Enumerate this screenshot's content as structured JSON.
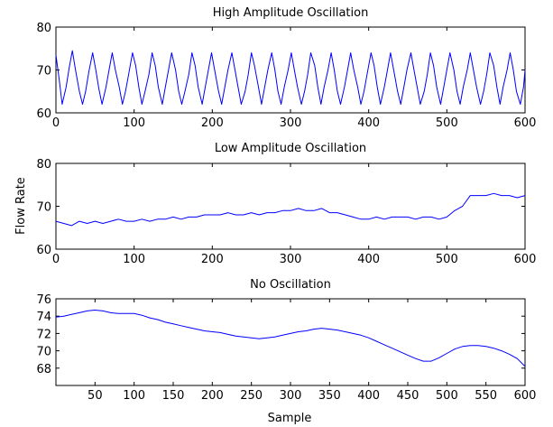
{
  "chart_data": [
    {
      "type": "line",
      "title": "High Amplitude Oscillation",
      "xlabel": "",
      "ylabel": "",
      "xlim": [
        0,
        600
      ],
      "ylim": [
        60,
        80
      ],
      "xticks": [
        0,
        100,
        200,
        300,
        400,
        500,
        600
      ],
      "yticks": [
        60,
        70,
        80
      ],
      "grid": false,
      "series": [
        {
          "color": "#0000ff",
          "x": [
            0,
            4,
            8,
            13,
            17,
            21,
            25,
            30,
            34,
            38,
            42,
            47,
            51,
            55,
            59,
            64,
            68,
            72,
            76,
            81,
            85,
            89,
            93,
            98,
            102,
            106,
            110,
            114,
            119,
            123,
            127,
            131,
            136,
            140,
            144,
            148,
            153,
            157,
            161,
            165,
            170,
            174,
            178,
            182,
            187,
            191,
            195,
            199,
            203,
            208,
            212,
            216,
            220,
            225,
            229,
            233,
            237,
            242,
            246,
            250,
            254,
            259,
            263,
            267,
            271,
            276,
            280,
            284,
            288,
            292,
            297,
            301,
            305,
            309,
            314,
            318,
            322,
            326,
            331,
            335,
            339,
            343,
            348,
            352,
            356,
            360,
            364,
            369,
            373,
            377,
            381,
            386,
            390,
            394,
            398,
            403,
            407,
            411,
            415,
            420,
            424,
            428,
            432,
            437,
            441,
            445,
            449,
            454,
            458,
            462,
            466,
            471,
            475,
            479,
            483,
            487,
            492,
            496,
            500,
            504,
            509,
            513,
            517,
            521,
            526,
            530,
            534,
            538,
            543,
            547,
            551,
            555,
            560,
            564,
            568,
            572,
            577,
            581,
            585,
            589,
            594,
            598,
            600
          ],
          "y": [
            73.5,
            68,
            62,
            66,
            70.5,
            74.5,
            70,
            65,
            62,
            65,
            69.5,
            74,
            70,
            65.5,
            62,
            66,
            70,
            74,
            70,
            66,
            62,
            65,
            69,
            74,
            71,
            66,
            62,
            65,
            69,
            74,
            71,
            66,
            62,
            66,
            70,
            74,
            70,
            65,
            62,
            65,
            69,
            74,
            71,
            66,
            62,
            66,
            70,
            74,
            70,
            65,
            62,
            66,
            70,
            74,
            70,
            66,
            62,
            65,
            69,
            74,
            71,
            66,
            62,
            66,
            70,
            74,
            70,
            65,
            62,
            66,
            70,
            74,
            70,
            66,
            62,
            65,
            69,
            74,
            71,
            66,
            62,
            66,
            70,
            74,
            70,
            65,
            62,
            66,
            70,
            74,
            70,
            66,
            62,
            65,
            69,
            74,
            71,
            66,
            62,
            66,
            70,
            74,
            70,
            65,
            62,
            66,
            70,
            74,
            70,
            66,
            62,
            65,
            69,
            74,
            71,
            66,
            62,
            66,
            70,
            74,
            70,
            65,
            62,
            66,
            70,
            74,
            70,
            66,
            62,
            65,
            69,
            74,
            71,
            66,
            62,
            66,
            70,
            74,
            70,
            65,
            62,
            66,
            70
          ]
        }
      ]
    },
    {
      "type": "line",
      "title": "Low Amplitude Oscillation",
      "xlabel": "",
      "ylabel": "Flow Rate",
      "xlim": [
        0,
        600
      ],
      "ylim": [
        60,
        80
      ],
      "xticks": [
        0,
        100,
        200,
        300,
        400,
        500,
        600
      ],
      "yticks": [
        60,
        70,
        80
      ],
      "grid": false,
      "series": [
        {
          "color": "#0000ff",
          "x": [
            0,
            10,
            20,
            30,
            40,
            50,
            60,
            70,
            80,
            90,
            100,
            110,
            120,
            130,
            140,
            150,
            160,
            170,
            180,
            190,
            200,
            210,
            220,
            230,
            240,
            250,
            260,
            270,
            280,
            290,
            300,
            310,
            320,
            330,
            340,
            350,
            360,
            370,
            380,
            390,
            400,
            410,
            420,
            430,
            440,
            450,
            460,
            470,
            480,
            490,
            500,
            510,
            520,
            530,
            540,
            550,
            560,
            570,
            580,
            590,
            600
          ],
          "y": [
            66.5,
            66,
            65.5,
            66.5,
            66,
            66.5,
            66,
            66.5,
            67,
            66.5,
            66.5,
            67,
            66.5,
            67,
            67,
            67.5,
            67,
            67.5,
            67.5,
            68,
            68,
            68,
            68.5,
            68,
            68,
            68.5,
            68,
            68.5,
            68.5,
            69,
            69,
            69.5,
            69,
            69,
            69.5,
            68.5,
            68.5,
            68,
            67.5,
            67,
            67,
            67.5,
            67,
            67.5,
            67.5,
            67.5,
            67,
            67.5,
            67.5,
            67,
            67.5,
            69,
            70,
            72.5,
            72.5,
            72.5,
            73,
            72.5,
            72.5,
            72,
            72.5
          ]
        }
      ]
    },
    {
      "type": "line",
      "title": "No Oscillation",
      "xlabel": "Sample",
      "ylabel": "",
      "xlim": [
        0,
        600
      ],
      "ylim": [
        66,
        76
      ],
      "xticks": [
        50,
        100,
        150,
        200,
        250,
        300,
        350,
        400,
        450,
        500,
        550,
        600
      ],
      "yticks": [
        68,
        70,
        72,
        74,
        76
      ],
      "grid": false,
      "series": [
        {
          "color": "#0000ff",
          "x": [
            0,
            10,
            20,
            30,
            40,
            50,
            60,
            70,
            80,
            90,
            100,
            110,
            120,
            130,
            140,
            150,
            160,
            170,
            180,
            190,
            200,
            210,
            220,
            230,
            240,
            250,
            260,
            270,
            280,
            290,
            300,
            310,
            320,
            330,
            340,
            350,
            360,
            370,
            380,
            390,
            400,
            410,
            420,
            430,
            440,
            450,
            460,
            470,
            480,
            490,
            500,
            510,
            520,
            530,
            540,
            550,
            560,
            570,
            580,
            590,
            600
          ],
          "y": [
            73.9,
            74,
            74.2,
            74.4,
            74.6,
            74.7,
            74.6,
            74.4,
            74.3,
            74.3,
            74.3,
            74.1,
            73.8,
            73.6,
            73.3,
            73.1,
            72.9,
            72.7,
            72.5,
            72.3,
            72.2,
            72.1,
            71.9,
            71.7,
            71.6,
            71.5,
            71.4,
            71.5,
            71.6,
            71.8,
            72,
            72.2,
            72.3,
            72.5,
            72.6,
            72.5,
            72.4,
            72.2,
            72,
            71.8,
            71.5,
            71.1,
            70.7,
            70.3,
            69.9,
            69.5,
            69.1,
            68.8,
            68.8,
            69.2,
            69.7,
            70.2,
            70.5,
            70.6,
            70.6,
            70.5,
            70.3,
            70,
            69.6,
            69.1,
            68.2
          ]
        }
      ]
    }
  ]
}
